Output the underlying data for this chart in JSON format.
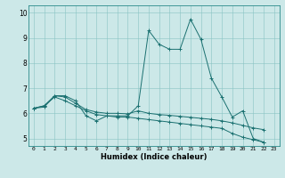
{
  "xlabel": "Humidex (Indice chaleur)",
  "background_color": "#cce8e8",
  "line_color": "#1a7070",
  "xlim": [
    -0.5,
    23.5
  ],
  "ylim": [
    4.7,
    10.3
  ],
  "xticks": [
    0,
    1,
    2,
    3,
    4,
    5,
    6,
    7,
    8,
    9,
    10,
    11,
    12,
    13,
    14,
    15,
    16,
    17,
    18,
    19,
    20,
    21,
    22,
    23
  ],
  "yticks": [
    5,
    6,
    7,
    8,
    9,
    10
  ],
  "line1_y": [
    6.2,
    6.3,
    6.7,
    6.7,
    6.5,
    5.9,
    5.7,
    5.9,
    5.9,
    5.9,
    6.3,
    9.3,
    8.75,
    8.55,
    8.55,
    9.75,
    8.95,
    7.4,
    6.65,
    5.85,
    6.1,
    5.0,
    4.85,
    null
  ],
  "line2_y": [
    6.2,
    6.3,
    6.65,
    6.5,
    6.3,
    6.1,
    5.95,
    5.9,
    5.85,
    5.85,
    5.8,
    5.75,
    5.7,
    5.65,
    5.6,
    5.55,
    5.5,
    5.45,
    5.4,
    5.2,
    5.05,
    4.95,
    4.85,
    null
  ],
  "line3_y": [
    6.2,
    6.25,
    6.7,
    6.65,
    6.4,
    6.15,
    6.05,
    6.0,
    6.0,
    5.98,
    6.1,
    6.0,
    5.95,
    5.92,
    5.88,
    5.84,
    5.8,
    5.76,
    5.7,
    5.62,
    5.52,
    5.42,
    5.35,
    null
  ]
}
